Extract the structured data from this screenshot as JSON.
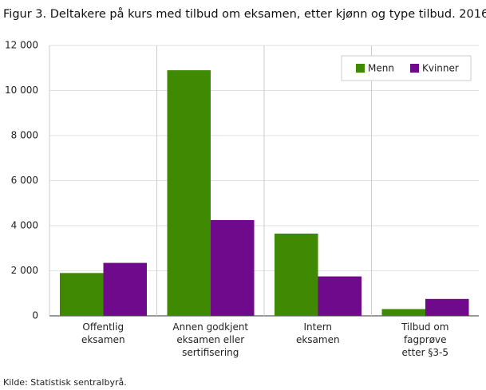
{
  "chart_data": {
    "type": "bar",
    "title": "Figur 3. Deltakere på kurs med tilbud om eksamen, etter kjønn og type tilbud. 2016",
    "source": "Kilde: Statistisk sentralbyrå.",
    "categories": [
      "Offentlig\neksamen",
      "Annen godkjent\neksamen eller\nsertifisering",
      "Intern\neksamen",
      "Tilbud om\nfagprøve\netter §3-5"
    ],
    "series": [
      {
        "name": "Menn",
        "color": "#3f8a02",
        "values": [
          1900,
          10900,
          3650,
          300
        ]
      },
      {
        "name": "Kvinner",
        "color": "#6f0a8c",
        "values": [
          2350,
          4250,
          1750,
          750
        ]
      }
    ],
    "ylim": [
      0,
      12000
    ],
    "yticks": [
      0,
      {
        "value": 2000,
        "label": "2 000"
      },
      {
        "value": 4000,
        "label": "4 000"
      },
      {
        "value": 6000,
        "label": "6 000"
      },
      {
        "value": 8000,
        "label": "8 000"
      },
      {
        "value": 10000,
        "label": "10 000"
      },
      {
        "value": 12000,
        "label": "12 000"
      }
    ],
    "grid": true,
    "legend": "top-right"
  }
}
